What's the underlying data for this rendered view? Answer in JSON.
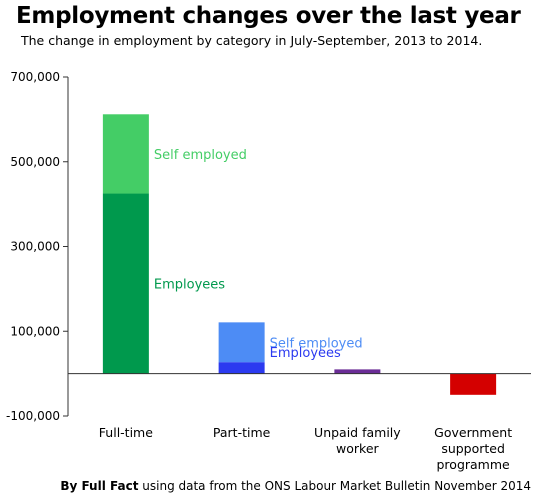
{
  "title": "Employment changes over the last year",
  "subtitle": "The change in employment by category in July-September, 2013 to 2014.",
  "footer": {
    "by": "By Full Fact",
    "rest": "using data from the ONS Labour Market Bulletin November 2014"
  },
  "chart_data": {
    "type": "bar",
    "stacked": true,
    "categories": [
      [
        "Full-time"
      ],
      [
        "Part-time"
      ],
      [
        "Unpaid family",
        "worker"
      ],
      [
        "Government",
        "supported",
        "programme"
      ]
    ],
    "series": [
      {
        "name": "Employees",
        "values": [
          425000,
          27000,
          10000,
          -50000
        ],
        "colors": [
          "#00994d",
          "#2b3af0",
          "#6a2c96",
          "#d40000"
        ]
      },
      {
        "name": "Self employed",
        "values": [
          187000,
          94000,
          0,
          0
        ],
        "colors": [
          "#44cd66",
          "#4d8cf5",
          "#6a2c96",
          "#d40000"
        ]
      }
    ],
    "data_labels": [
      {
        "text": "Self employed",
        "category": 0,
        "series": 1,
        "color": "#44cd66"
      },
      {
        "text": "Employees",
        "category": 0,
        "series": 0,
        "color": "#00994d"
      },
      {
        "text": "Self employed",
        "category": 1,
        "series": 1,
        "color": "#4d8cf5"
      },
      {
        "text": "Employees",
        "category": 1,
        "series": 0,
        "color": "#2b3af0"
      }
    ],
    "yticks": [
      700000,
      500000,
      300000,
      100000,
      -100000
    ],
    "ytick_labels": [
      "700,000",
      "500,000",
      "300,000",
      "100,000",
      "-100,000"
    ],
    "ylim": [
      -100000,
      700000
    ],
    "grid": false
  }
}
